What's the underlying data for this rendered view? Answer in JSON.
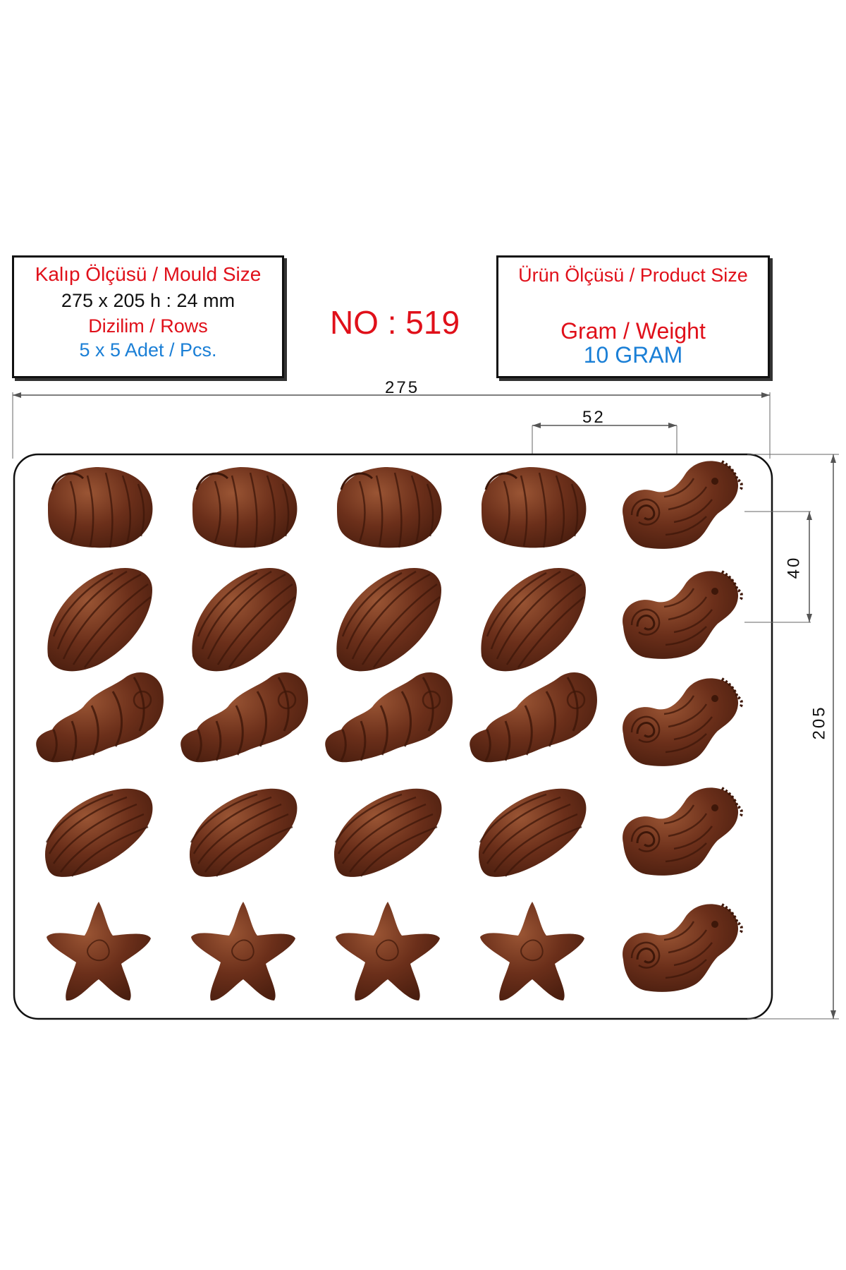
{
  "mould_box": {
    "title": "Kalıp Ölçüsü / Mould Size",
    "size": "275 x 205 h : 24 mm",
    "rows_label": "Dizilim / Rows",
    "pieces": "5 x 5 Adet / Pcs."
  },
  "model_number": "NO : 519",
  "product_box": {
    "title": "Ürün Ölçüsü / Product Size",
    "weight_label": "Gram / Weight",
    "weight_value": "10 GRAM"
  },
  "dimensions": {
    "width": "275",
    "height": "205",
    "pitch_x": "52",
    "pitch_y": "40"
  },
  "colors": {
    "chocolate": "#6b2f1a",
    "chocolate_dark": "#4a1e0f",
    "chocolate_light": "#9a5534",
    "title_red": "#e0101a",
    "value_blue": "#1a7fd6"
  },
  "cavity_rows": [
    {
      "shape": "scallop-shell",
      "count": 4
    },
    {
      "shape": "clam-shell",
      "count": 4
    },
    {
      "shape": "spiral-conch",
      "count": 4
    },
    {
      "shape": "mussel-shell",
      "count": 4
    },
    {
      "shape": "starfish",
      "count": 4
    }
  ],
  "cavity_column": {
    "shape": "seahorse",
    "count": 5
  }
}
